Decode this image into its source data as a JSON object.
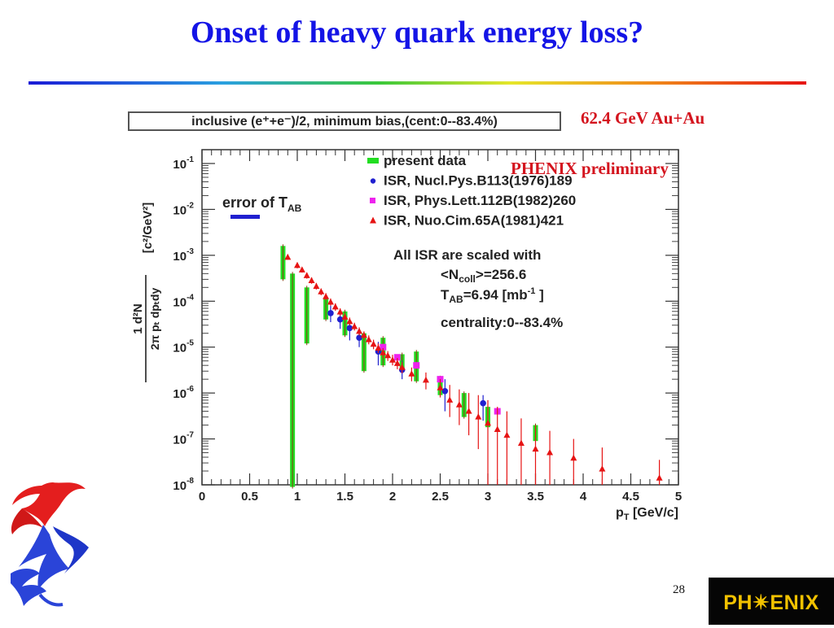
{
  "slide": {
    "title": "Onset of heavy quark energy loss?",
    "energy_label": "62.4 GeV Au+Au",
    "preliminary_label": "PHENIX preliminary",
    "page_number": "28",
    "logo_text": "PH✴ENIX"
  },
  "colors": {
    "title": "#1414e6",
    "red_text": "#d4141e",
    "present": "#22dd22",
    "isr_nucl": "#2020d0",
    "isr_phys": "#ee22ee",
    "isr_nuo": "#e61414",
    "tab_bar": "#2020d0",
    "logo_bg": "#050505",
    "logo_text": "#f2c200"
  },
  "chart_data": {
    "type": "scatter",
    "box_label": "inclusive (e⁺+e⁻)/2, minimum bias,(cent:0--83.4%)",
    "x_scale": "linear",
    "y_scale": "log",
    "xlim": [
      0,
      5
    ],
    "ylim": [
      1e-08,
      0.2
    ],
    "x_ticks": [
      "0",
      "0.5",
      "1",
      "1.5",
      "2",
      "2.5",
      "3",
      "3.5",
      "4",
      "4.5",
      "5"
    ],
    "y_ticks": [
      {
        "base": "10",
        "exp": "-1"
      },
      {
        "base": "10",
        "exp": "-2"
      },
      {
        "base": "10",
        "exp": "-3"
      },
      {
        "base": "10",
        "exp": "-4"
      },
      {
        "base": "10",
        "exp": "-5"
      },
      {
        "base": "10",
        "exp": "-6"
      },
      {
        "base": "10",
        "exp": "-7"
      },
      {
        "base": "10",
        "exp": "-8"
      }
    ],
    "xlabel": {
      "main": "p",
      "sub": "T",
      "unit": " [GeV/c]"
    },
    "ylabel": {
      "line1": "1    d²N",
      "line2": "2π pₜ dpₜdy",
      "unit": "[c²/GeV²]"
    },
    "tab_error_label": {
      "main": "error of T",
      "sub": "AB"
    },
    "legend": [
      {
        "label": "present data",
        "marker": "box"
      },
      {
        "label": "ISR, Nucl.Pys.B113(1976)189",
        "marker": "circle"
      },
      {
        "label": "ISR, Phys.Lett.112B(1982)260",
        "marker": "square"
      },
      {
        "label": "ISR, Nuo.Cim.65A(1981)421",
        "marker": "triangle"
      }
    ],
    "annotations": [
      "All ISR are scaled with",
      "<N_coll>=256.6",
      "T_AB=6.94 [mb^-1 ]",
      "centrality:0--83.4%"
    ],
    "series": [
      {
        "name": "present data",
        "marker": "box",
        "points": [
          {
            "x": 0.85,
            "y": 0.00085,
            "lo": 0.0003,
            "hi": 0.0016
          },
          {
            "x": 0.95,
            "y": 3e-06,
            "lo": 9e-09,
            "hi": 0.0004
          },
          {
            "x": 1.1,
            "y": 0.0001,
            "lo": 1.2e-05,
            "hi": 0.0002
          },
          {
            "x": 1.3,
            "y": 8e-05,
            "lo": 4e-05,
            "hi": 0.00012
          },
          {
            "x": 1.5,
            "y": 3.2e-05,
            "lo": 1.8e-05,
            "hi": 6e-05
          },
          {
            "x": 1.7,
            "y": 1e-05,
            "lo": 3e-06,
            "hi": 2e-05
          },
          {
            "x": 1.9,
            "y": 1e-05,
            "lo": 4e-06,
            "hi": 1.6e-05
          },
          {
            "x": 2.1,
            "y": 5e-06,
            "lo": 3e-06,
            "hi": 7e-06
          },
          {
            "x": 2.25,
            "y": 3e-06,
            "lo": 1.8e-06,
            "hi": 8e-06
          },
          {
            "x": 2.5,
            "y": 1.5e-06,
            "lo": 9e-07,
            "hi": 2.2e-06
          },
          {
            "x": 2.75,
            "y": 7e-07,
            "lo": 3e-07,
            "hi": 1e-06
          },
          {
            "x": 3.0,
            "y": 3e-07,
            "lo": 1.8e-07,
            "hi": 5e-07
          },
          {
            "x": 3.5,
            "y": 1.3e-07,
            "lo": 9e-08,
            "hi": 2e-07
          }
        ]
      },
      {
        "name": "ISR, Nucl.Pys.B113(1976)189",
        "marker": "circle",
        "points": [
          {
            "x": 1.35,
            "y": 5.5e-05,
            "lo": 3.5e-05,
            "hi": 8e-05
          },
          {
            "x": 1.45,
            "y": 4e-05,
            "lo": 2.5e-05,
            "hi": 6e-05
          },
          {
            "x": 1.55,
            "y": 2.6e-05,
            "lo": 1.4e-05,
            "hi": 4e-05
          },
          {
            "x": 1.65,
            "y": 1.6e-05,
            "lo": 1e-05,
            "hi": 2.4e-05
          },
          {
            "x": 1.85,
            "y": 8e-06,
            "lo": 4e-06,
            "hi": 1.3e-05
          },
          {
            "x": 2.1,
            "y": 3.2e-06,
            "lo": 2e-06,
            "hi": 5e-06
          },
          {
            "x": 2.55,
            "y": 1.1e-06,
            "lo": 4e-07,
            "hi": 2e-06
          },
          {
            "x": 2.95,
            "y": 6e-07,
            "lo": 2.5e-07,
            "hi": 9e-07
          }
        ]
      },
      {
        "name": "ISR, Phys.Lett.112B(1982)260",
        "marker": "square",
        "points": [
          {
            "x": 1.9,
            "y": 1e-05,
            "lo": 1e-05,
            "hi": 1e-05
          },
          {
            "x": 2.05,
            "y": 6e-06,
            "lo": 6e-06,
            "hi": 6e-06
          },
          {
            "x": 2.25,
            "y": 4e-06,
            "lo": 4e-06,
            "hi": 4e-06
          },
          {
            "x": 2.5,
            "y": 2e-06,
            "lo": 2e-06,
            "hi": 2e-06
          },
          {
            "x": 3.1,
            "y": 4e-07,
            "lo": 4e-07,
            "hi": 4e-07
          }
        ]
      },
      {
        "name": "ISR, Nuo.Cim.65A(1981)421",
        "marker": "triangle",
        "points": [
          {
            "x": 0.9,
            "y": 0.0009,
            "lo": 0.0008,
            "hi": 0.00105
          },
          {
            "x": 1.0,
            "y": 0.0006,
            "lo": 0.00052,
            "hi": 0.0007
          },
          {
            "x": 1.05,
            "y": 0.00048,
            "lo": 0.00042,
            "hi": 0.00055
          },
          {
            "x": 1.1,
            "y": 0.00036,
            "lo": 0.00031,
            "hi": 0.00042
          },
          {
            "x": 1.15,
            "y": 0.00028,
            "lo": 0.00024,
            "hi": 0.00033
          },
          {
            "x": 1.2,
            "y": 0.00021,
            "lo": 0.00018,
            "hi": 0.00025
          },
          {
            "x": 1.25,
            "y": 0.00016,
            "lo": 0.000135,
            "hi": 0.00019
          },
          {
            "x": 1.3,
            "y": 0.000125,
            "lo": 0.000105,
            "hi": 0.00015
          },
          {
            "x": 1.35,
            "y": 9.5e-05,
            "lo": 8e-05,
            "hi": 0.000115
          },
          {
            "x": 1.4,
            "y": 7.5e-05,
            "lo": 6.2e-05,
            "hi": 9e-05
          },
          {
            "x": 1.45,
            "y": 5.8e-05,
            "lo": 4.8e-05,
            "hi": 7e-05
          },
          {
            "x": 1.5,
            "y": 4.5e-05,
            "lo": 3.7e-05,
            "hi": 5.4e-05
          },
          {
            "x": 1.55,
            "y": 3.6e-05,
            "lo": 3e-05,
            "hi": 4.4e-05
          },
          {
            "x": 1.6,
            "y": 2.8e-05,
            "lo": 2.3e-05,
            "hi": 3.4e-05
          },
          {
            "x": 1.65,
            "y": 2.2e-05,
            "lo": 1.8e-05,
            "hi": 2.7e-05
          },
          {
            "x": 1.7,
            "y": 1.8e-05,
            "lo": 1.45e-05,
            "hi": 2.2e-05
          },
          {
            "x": 1.75,
            "y": 1.45e-05,
            "lo": 1.15e-05,
            "hi": 1.8e-05
          },
          {
            "x": 1.8,
            "y": 1.15e-05,
            "lo": 9e-06,
            "hi": 1.45e-05
          },
          {
            "x": 1.85,
            "y": 9.5e-06,
            "lo": 7.5e-06,
            "hi": 1.2e-05
          },
          {
            "x": 1.9,
            "y": 7.5e-06,
            "lo": 5.8e-06,
            "hi": 9.5e-06
          },
          {
            "x": 1.95,
            "y": 6.5e-06,
            "lo": 5e-06,
            "hi": 8.2e-06
          },
          {
            "x": 2.0,
            "y": 5.2e-06,
            "lo": 4e-06,
            "hi": 6.8e-06
          },
          {
            "x": 2.05,
            "y": 4.4e-06,
            "lo": 3.3e-06,
            "hi": 5.8e-06
          },
          {
            "x": 2.1,
            "y": 3.6e-06,
            "lo": 2.7e-06,
            "hi": 4.8e-06
          },
          {
            "x": 2.2,
            "y": 2.6e-06,
            "lo": 1.8e-06,
            "hi": 3.6e-06
          },
          {
            "x": 2.35,
            "y": 1.9e-06,
            "lo": 1.2e-06,
            "hi": 2.8e-06
          },
          {
            "x": 2.5,
            "y": 1.3e-06,
            "lo": 8e-07,
            "hi": 2e-06
          },
          {
            "x": 2.6,
            "y": 7e-07,
            "lo": 3e-07,
            "hi": 1.5e-06
          },
          {
            "x": 2.7,
            "y": 5.5e-07,
            "lo": 2e-07,
            "hi": 1.2e-06
          },
          {
            "x": 2.8,
            "y": 4e-07,
            "lo": 1.2e-07,
            "hi": 1e-06
          },
          {
            "x": 2.9,
            "y": 3e-07,
            "lo": 6e-08,
            "hi": 9e-07
          },
          {
            "x": 3.0,
            "y": 2.2e-07,
            "lo": 1e-08,
            "hi": 7e-07
          },
          {
            "x": 3.1,
            "y": 1.6e-07,
            "lo": 1e-08,
            "hi": 5e-07
          },
          {
            "x": 3.2,
            "y": 1.2e-07,
            "lo": 1e-08,
            "hi": 4e-07
          },
          {
            "x": 3.35,
            "y": 8e-08,
            "lo": 1e-08,
            "hi": 2.8e-07
          },
          {
            "x": 3.5,
            "y": 6e-08,
            "lo": 1e-08,
            "hi": 2e-07
          },
          {
            "x": 3.65,
            "y": 5e-08,
            "lo": 1e-08,
            "hi": 1.5e-07
          },
          {
            "x": 3.9,
            "y": 3.8e-08,
            "lo": 1e-08,
            "hi": 1e-07
          },
          {
            "x": 4.2,
            "y": 2.2e-08,
            "lo": 1e-08,
            "hi": 6.5e-08
          },
          {
            "x": 4.8,
            "y": 1.4e-08,
            "lo": 1e-08,
            "hi": 3.5e-08
          }
        ]
      }
    ]
  }
}
